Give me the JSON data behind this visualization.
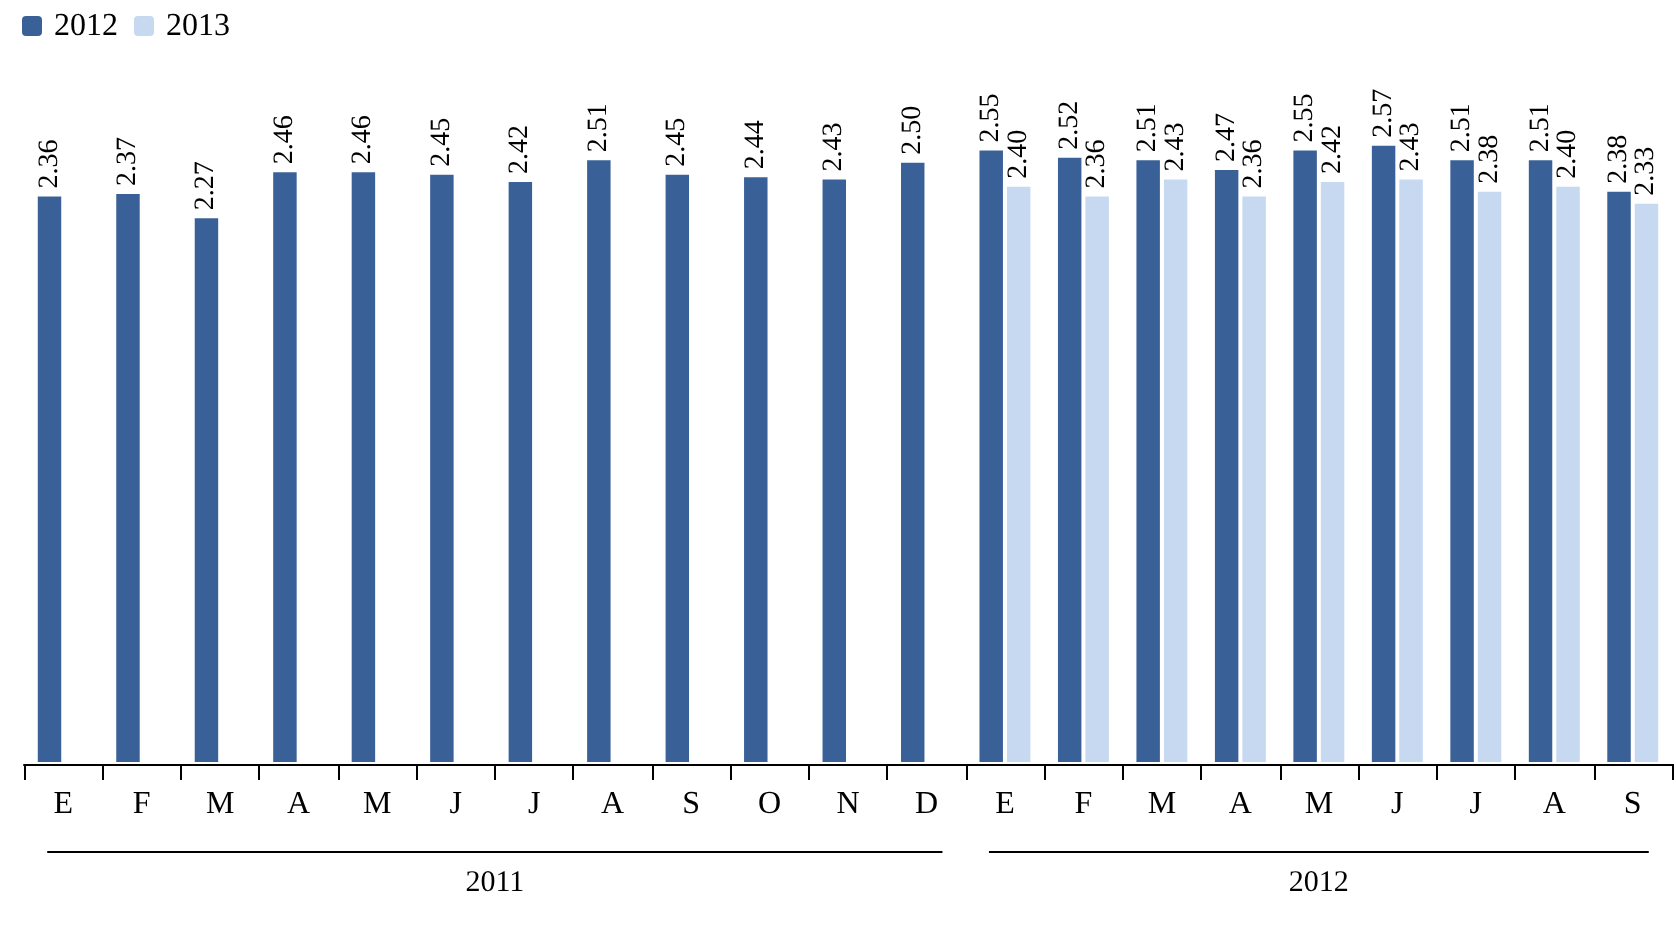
{
  "chart_data": {
    "type": "bar",
    "categories": [
      "E",
      "F",
      "M",
      "A",
      "M",
      "J",
      "J",
      "A",
      "S",
      "O",
      "N",
      "D",
      "E",
      "F",
      "M",
      "A",
      "M",
      "J",
      "J",
      "A",
      "S"
    ],
    "series": [
      {
        "name": "2012",
        "color": "#3a6098",
        "values": [
          2.36,
          2.37,
          2.27,
          2.46,
          2.46,
          2.45,
          2.42,
          2.51,
          2.45,
          2.44,
          2.43,
          2.5,
          2.55,
          2.52,
          2.51,
          2.47,
          2.55,
          2.57,
          2.51,
          2.51,
          2.38
        ],
        "value_labels": [
          "2.36",
          "2.37",
          "2.27",
          "2.46",
          "2.46",
          "2.45",
          "2.42",
          "2.51",
          "2.45",
          "2.44",
          "2.43",
          "2.50",
          "2.55",
          "2.52",
          "2.51",
          "2.47",
          "2.55",
          "2.57",
          "2.51",
          "2.51",
          "2.38"
        ]
      },
      {
        "name": "2013",
        "color": "#c6d9f1",
        "values": [
          null,
          null,
          null,
          null,
          null,
          null,
          null,
          null,
          null,
          null,
          null,
          null,
          2.4,
          2.36,
          2.43,
          2.36,
          2.42,
          2.43,
          2.38,
          2.4,
          2.33
        ],
        "value_labels": [
          null,
          null,
          null,
          null,
          null,
          null,
          null,
          null,
          null,
          null,
          null,
          null,
          "2.40",
          "2.36",
          "2.43",
          "2.36",
          "2.42",
          "2.43",
          "2.38",
          "2.40",
          "2.33"
        ]
      }
    ],
    "annotations": [
      "2011",
      "2012"
    ],
    "legend": "top left"
  }
}
